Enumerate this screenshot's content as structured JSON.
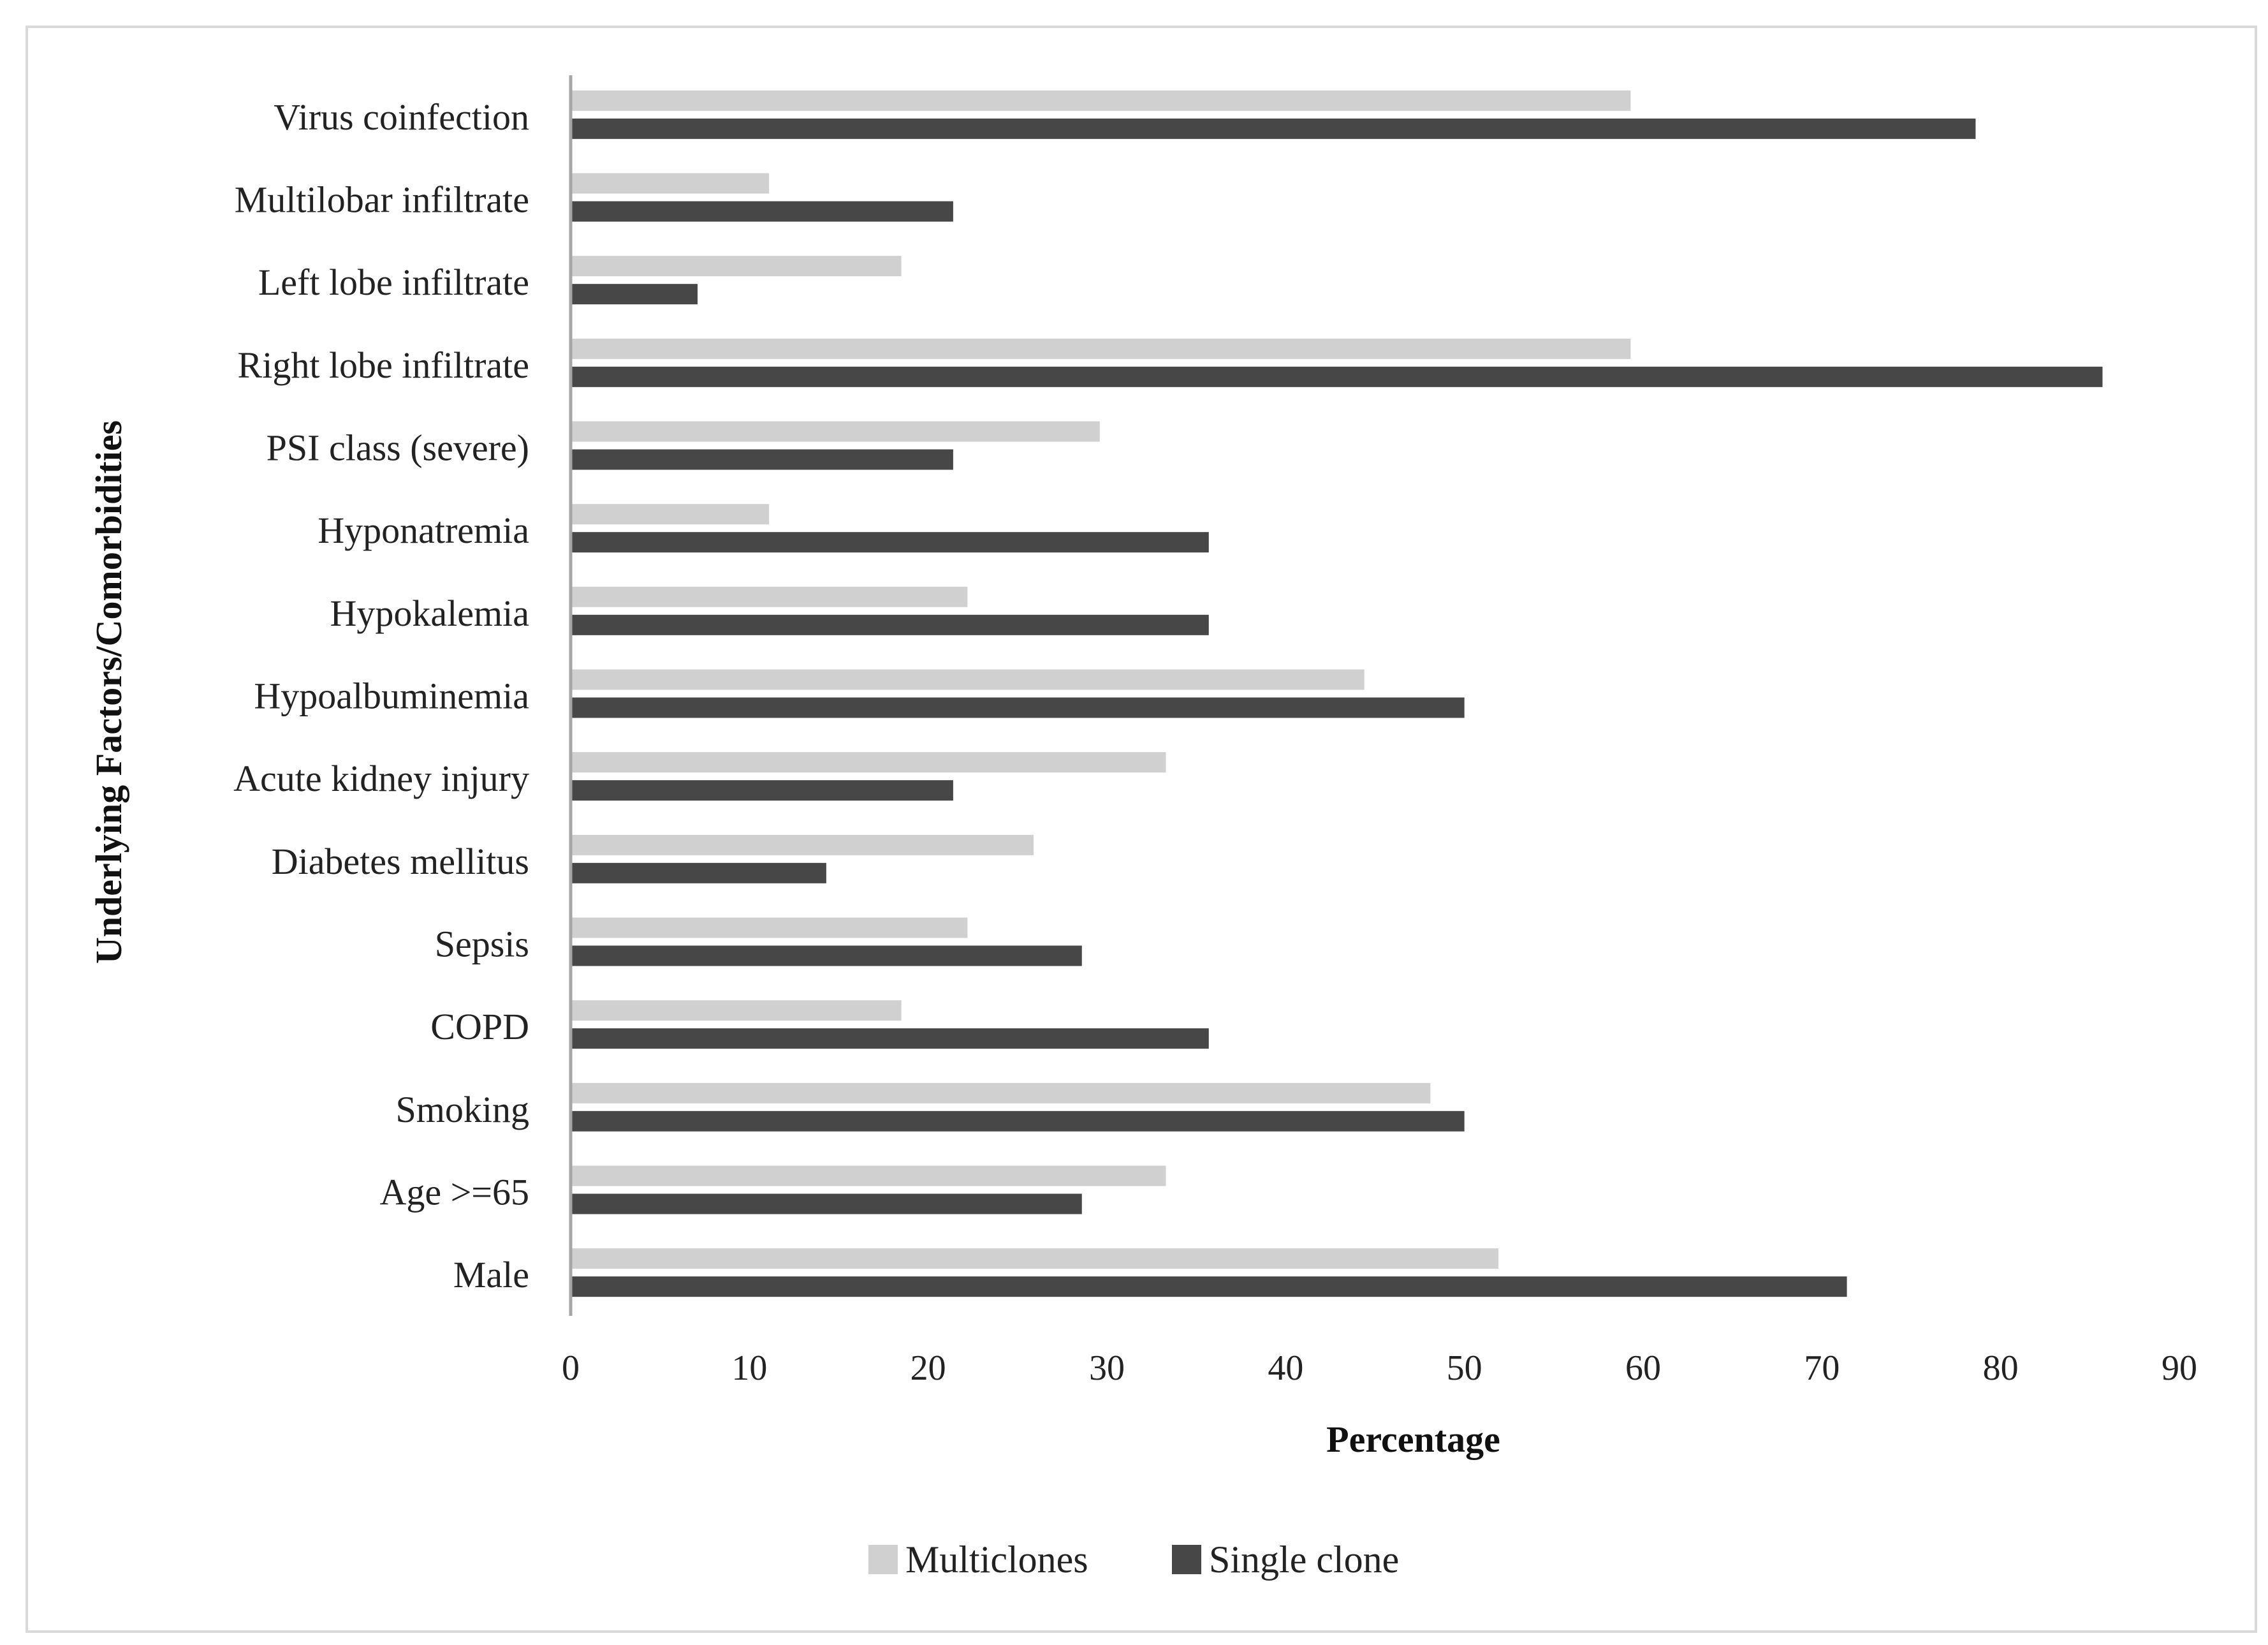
{
  "chart_data": {
    "type": "bar",
    "orientation": "horizontal",
    "title": "",
    "xlabel": "Percentage",
    "ylabel": "Underlying Factors/Comorbidities",
    "xlim": [
      0,
      90
    ],
    "xticks": [
      0,
      10,
      20,
      30,
      40,
      50,
      60,
      70,
      80,
      90
    ],
    "grid": false,
    "legend_position": "bottom",
    "categories": [
      "Virus coinfection",
      "Multilobar infiltrate",
      "Left lobe infiltrate",
      "Right lobe infiltrate",
      "PSI class (severe)",
      "Hyponatremia",
      "Hypokalemia",
      "Hypoalbuminemia",
      "Acute kidney injury",
      "Diabetes mellitus",
      "Sepsis",
      "COPD",
      "Smoking",
      "Age >=65",
      "Male"
    ],
    "series": [
      {
        "name": "Multiclones",
        "color": "#d0d0d0",
        "values": [
          59.3,
          11.1,
          18.5,
          59.3,
          29.6,
          11.1,
          22.2,
          44.4,
          33.3,
          25.9,
          22.2,
          18.5,
          48.1,
          33.3,
          51.9
        ]
      },
      {
        "name": "Single clone",
        "color": "#474747",
        "values": [
          78.6,
          21.4,
          7.1,
          85.7,
          21.4,
          35.7,
          35.7,
          50.0,
          21.4,
          14.3,
          28.6,
          35.7,
          50.0,
          28.6,
          71.4
        ]
      }
    ]
  }
}
